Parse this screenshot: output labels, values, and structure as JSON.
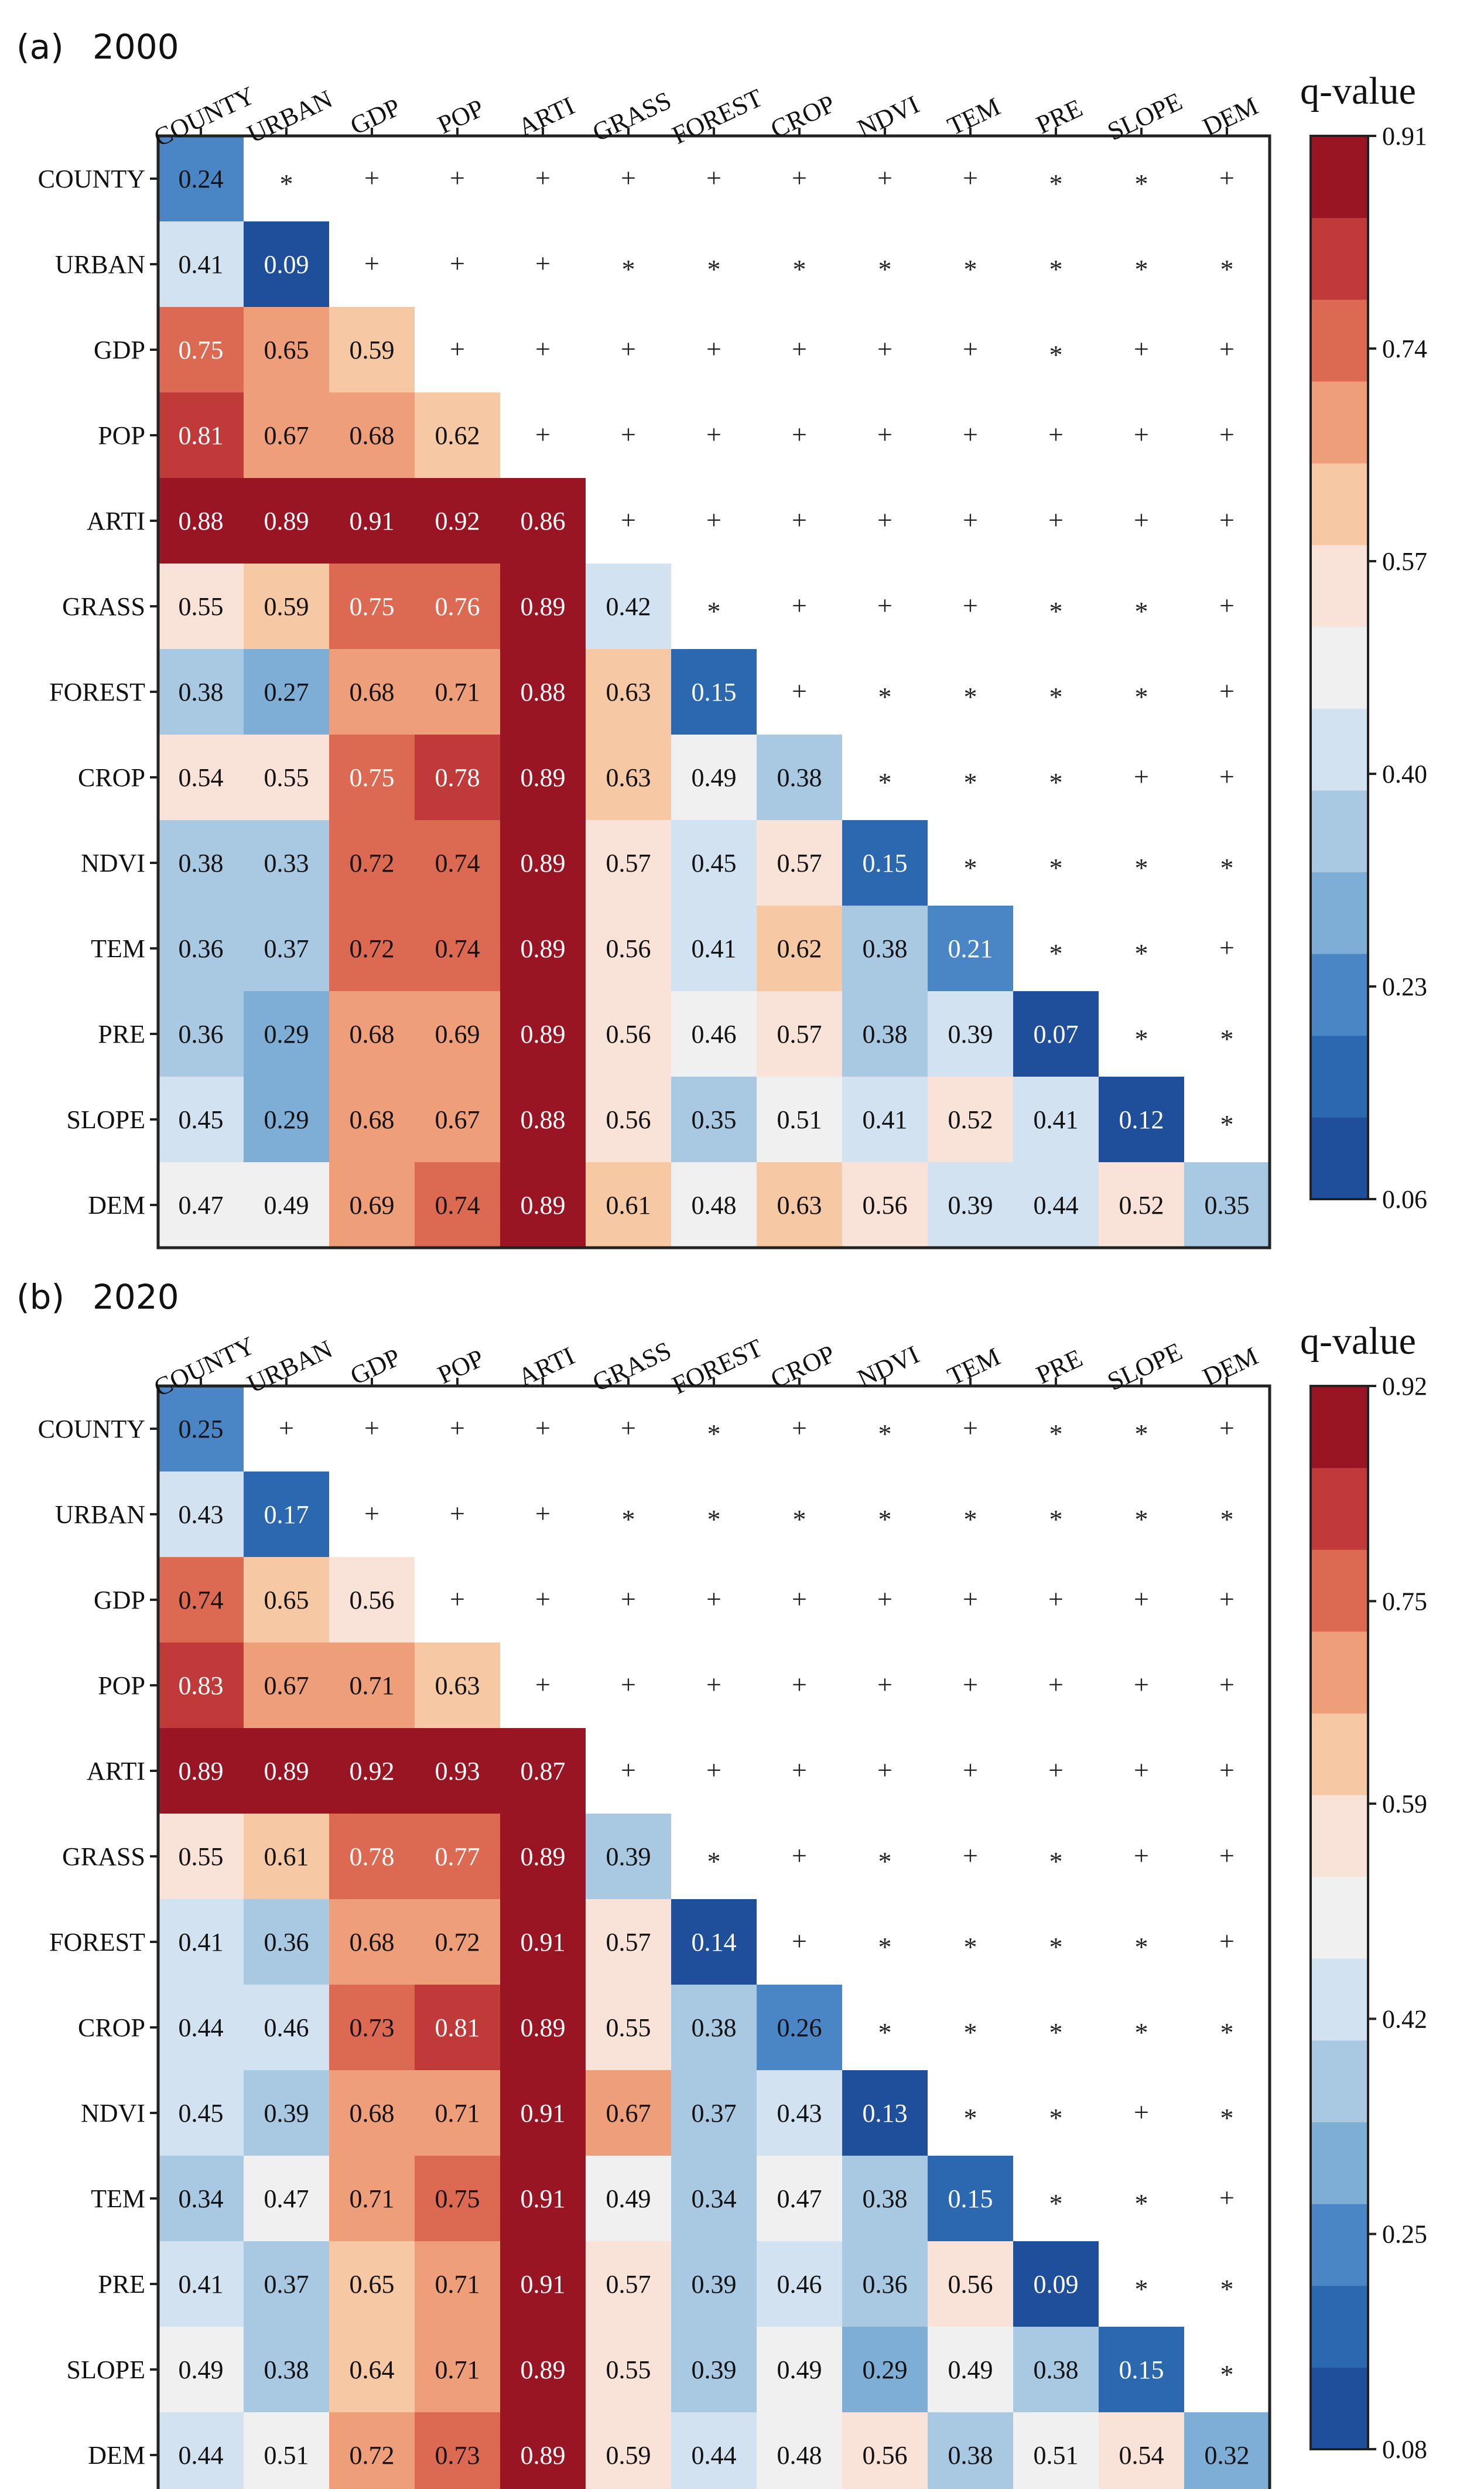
{
  "chart_data": [
    {
      "type": "heatmap",
      "panel_label": "(a)",
      "year": "2000",
      "variables": [
        "COUNTY",
        "URBAN",
        "GDP",
        "POP",
        "ARTI",
        "GRASS",
        "FOREST",
        "CROP",
        "NDVI",
        "TEM",
        "PRE",
        "SLOPE",
        "DEM"
      ],
      "lower_values": [
        [
          "0.24"
        ],
        [
          "0.41",
          "0.09"
        ],
        [
          "0.75",
          "0.65",
          "0.59"
        ],
        [
          "0.81",
          "0.67",
          "0.68",
          "0.62"
        ],
        [
          "0.88",
          "0.89",
          "0.91",
          "0.92",
          "0.86"
        ],
        [
          "0.55",
          "0.59",
          "0.75",
          "0.76",
          "0.89",
          "0.42"
        ],
        [
          "0.38",
          "0.27",
          "0.68",
          "0.71",
          "0.88",
          "0.63",
          "0.15"
        ],
        [
          "0.54",
          "0.55",
          "0.75",
          "0.78",
          "0.89",
          "0.63",
          "0.49",
          "0.38"
        ],
        [
          "0.38",
          "0.33",
          "0.72",
          "0.74",
          "0.89",
          "0.57",
          "0.45",
          "0.57",
          "0.15"
        ],
        [
          "0.36",
          "0.37",
          "0.72",
          "0.74",
          "0.89",
          "0.56",
          "0.41",
          "0.62",
          "0.38",
          "0.21"
        ],
        [
          "0.36",
          "0.29",
          "0.68",
          "0.69",
          "0.89",
          "0.56",
          "0.46",
          "0.57",
          "0.38",
          "0.39",
          "0.07"
        ],
        [
          "0.45",
          "0.29",
          "0.68",
          "0.67",
          "0.88",
          "0.56",
          "0.35",
          "0.51",
          "0.41",
          "0.52",
          "0.41",
          "0.12"
        ],
        [
          "0.47",
          "0.49",
          "0.69",
          "0.74",
          "0.89",
          "0.61",
          "0.48",
          "0.63",
          "0.56",
          "0.39",
          "0.44",
          "0.52",
          "0.35"
        ]
      ],
      "upper_symbols": [
        [
          "*",
          "+",
          "+",
          "+",
          "+",
          "+",
          "+",
          "+",
          "+",
          "*",
          "*",
          "+"
        ],
        [
          "+",
          "+",
          "+",
          "*",
          "*",
          "*",
          "*",
          "*",
          "*",
          "*",
          "*"
        ],
        [
          "+",
          "+",
          "+",
          "+",
          "+",
          "+",
          "+",
          "*",
          "+",
          "+"
        ],
        [
          "+",
          "+",
          "+",
          "+",
          "+",
          "+",
          "+",
          "+",
          "+"
        ],
        [
          "+",
          "+",
          "+",
          "+",
          "+",
          "+",
          "+",
          "+"
        ],
        [
          "*",
          "+",
          "+",
          "+",
          "*",
          "*",
          "+"
        ],
        [
          "+",
          "*",
          "*",
          "*",
          "*",
          "+"
        ],
        [
          "*",
          "*",
          "*",
          "+",
          "+"
        ],
        [
          "*",
          "*",
          "*",
          "*"
        ],
        [
          "*",
          "*",
          "+"
        ],
        [
          "*",
          "*"
        ],
        [
          "*"
        ]
      ],
      "colorbar": {
        "title": "q-value",
        "min": 0.06,
        "max": 0.91,
        "ticks": [
          "0.91",
          "0.74",
          "0.57",
          "0.40",
          "0.23",
          "0.06"
        ]
      }
    },
    {
      "type": "heatmap",
      "panel_label": "(b)",
      "year": "2020",
      "variables": [
        "COUNTY",
        "URBAN",
        "GDP",
        "POP",
        "ARTI",
        "GRASS",
        "FOREST",
        "CROP",
        "NDVI",
        "TEM",
        "PRE",
        "SLOPE",
        "DEM"
      ],
      "lower_values": [
        [
          "0.25"
        ],
        [
          "0.43",
          "0.17"
        ],
        [
          "0.74",
          "0.65",
          "0.56"
        ],
        [
          "0.83",
          "0.67",
          "0.71",
          "0.63"
        ],
        [
          "0.89",
          "0.89",
          "0.92",
          "0.93",
          "0.87"
        ],
        [
          "0.55",
          "0.61",
          "0.78",
          "0.77",
          "0.89",
          "0.39"
        ],
        [
          "0.41",
          "0.36",
          "0.68",
          "0.72",
          "0.91",
          "0.57",
          "0.14"
        ],
        [
          "0.44",
          "0.46",
          "0.73",
          "0.81",
          "0.89",
          "0.55",
          "0.38",
          "0.26"
        ],
        [
          "0.45",
          "0.39",
          "0.68",
          "0.71",
          "0.91",
          "0.67",
          "0.37",
          "0.43",
          "0.13"
        ],
        [
          "0.34",
          "0.47",
          "0.71",
          "0.75",
          "0.91",
          "0.49",
          "0.34",
          "0.47",
          "0.38",
          "0.15"
        ],
        [
          "0.41",
          "0.37",
          "0.65",
          "0.71",
          "0.91",
          "0.57",
          "0.39",
          "0.46",
          "0.36",
          "0.56",
          "0.09"
        ],
        [
          "0.49",
          "0.38",
          "0.64",
          "0.71",
          "0.89",
          "0.55",
          "0.39",
          "0.49",
          "0.29",
          "0.49",
          "0.38",
          "0.15"
        ],
        [
          "0.44",
          "0.51",
          "0.72",
          "0.73",
          "0.89",
          "0.59",
          "0.44",
          "0.48",
          "0.56",
          "0.38",
          "0.51",
          "0.54",
          "0.32"
        ]
      ],
      "upper_symbols": [
        [
          "+",
          "+",
          "+",
          "+",
          "+",
          "*",
          "+",
          "*",
          "+",
          "*",
          "*",
          "+"
        ],
        [
          "+",
          "+",
          "+",
          "*",
          "*",
          "*",
          "*",
          "*",
          "*",
          "*",
          "*"
        ],
        [
          "+",
          "+",
          "+",
          "+",
          "+",
          "+",
          "+",
          "+",
          "+",
          "+"
        ],
        [
          "+",
          "+",
          "+",
          "+",
          "+",
          "+",
          "+",
          "+",
          "+"
        ],
        [
          "+",
          "+",
          "+",
          "+",
          "+",
          "+",
          "+",
          "+"
        ],
        [
          "*",
          "+",
          "*",
          "+",
          "*",
          "+",
          "+"
        ],
        [
          "+",
          "*",
          "*",
          "*",
          "*",
          "+"
        ],
        [
          "*",
          "*",
          "*",
          "*",
          "*"
        ],
        [
          "*",
          "*",
          "+",
          "*"
        ],
        [
          "*",
          "*",
          "+"
        ],
        [
          "*",
          "*"
        ],
        [
          "*"
        ]
      ],
      "colorbar": {
        "title": "q-value",
        "min": 0.08,
        "max": 0.92,
        "ticks": [
          "0.92",
          "0.75",
          "0.59",
          "0.42",
          "0.25",
          "0.08"
        ]
      }
    }
  ],
  "colors": {
    "palette": [
      "#1f4e9a",
      "#2c68b0",
      "#4a86c5",
      "#7eaed6",
      "#a9c9e3",
      "#d2e2f0",
      "#f0f0f0",
      "#f9e3d8",
      "#f6c8a4",
      "#ee9e79",
      "#dc6a53",
      "#c03a3a",
      "#9a1524"
    ],
    "diagonal_low": "#2357a8",
    "text_dark": "#111111",
    "text_light": "#ffffff"
  }
}
